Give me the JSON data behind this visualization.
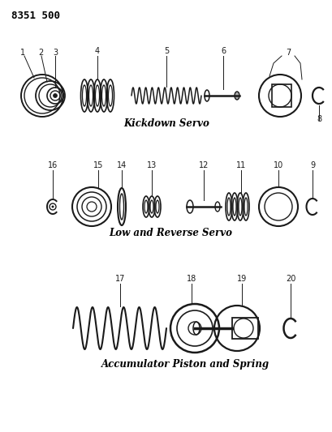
{
  "title_code": "8351 500",
  "section1_label": "Kickdown Servo",
  "section2_label": "Low and Reverse Servo",
  "section3_label": "Accumulator Piston and Spring",
  "bg_color": "#ffffff",
  "line_color": "#1a1a1a",
  "text_color": "#000000",
  "s1y": 415,
  "s2y": 278,
  "s3y": 128
}
